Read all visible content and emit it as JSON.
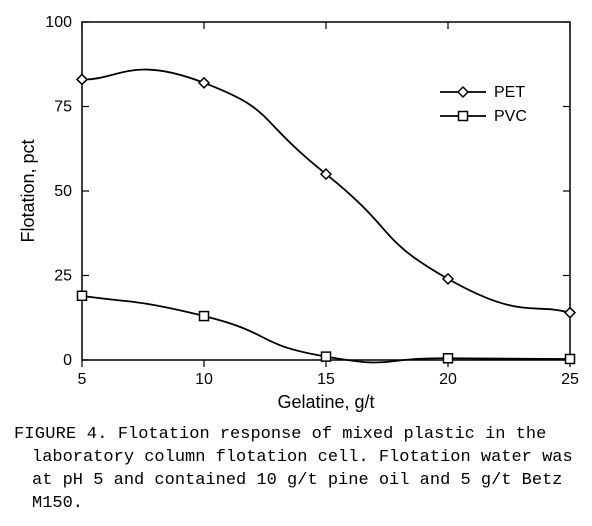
{
  "chart": {
    "type": "line",
    "background_color": "#ffffff",
    "line_color": "#000000",
    "marker_fill": "#ffffff",
    "marker_stroke": "#000000",
    "axis_color": "#000000",
    "font_family_axes": "Arial",
    "font_family_caption": "Courier New",
    "xlabel": "Gelatine, g/t",
    "ylabel": "Flotation, pct",
    "xlabel_fontsize": 18,
    "ylabel_fontsize": 18,
    "tick_fontsize": 16,
    "xlim": [
      5,
      25
    ],
    "ylim": [
      0,
      100
    ],
    "xticks": [
      5,
      10,
      15,
      20,
      25
    ],
    "yticks": [
      0,
      25,
      50,
      75,
      100
    ],
    "series": [
      {
        "name": "PET",
        "marker": "diamond",
        "marker_size": 10,
        "line_width": 1.8,
        "x": [
          5,
          10,
          15,
          20,
          25
        ],
        "y": [
          83,
          82,
          55,
          24,
          14
        ]
      },
      {
        "name": "PVC",
        "marker": "square",
        "marker_size": 9,
        "line_width": 1.8,
        "x": [
          5,
          10,
          15,
          20,
          25
        ],
        "y": [
          19,
          13,
          1,
          0.5,
          0.3
        ]
      }
    ],
    "legend": {
      "position": "right-top",
      "items": [
        {
          "label": "PET",
          "marker": "diamond"
        },
        {
          "label": "PVC",
          "marker": "square"
        }
      ]
    }
  },
  "caption": {
    "label": "FIGURE 4.",
    "text": "Flotation response of mixed plastic in the laboratory column flotation cell. Flotation water was at pH 5 and contained 10 g/t pine oil and 5 g/t Betz M150."
  }
}
